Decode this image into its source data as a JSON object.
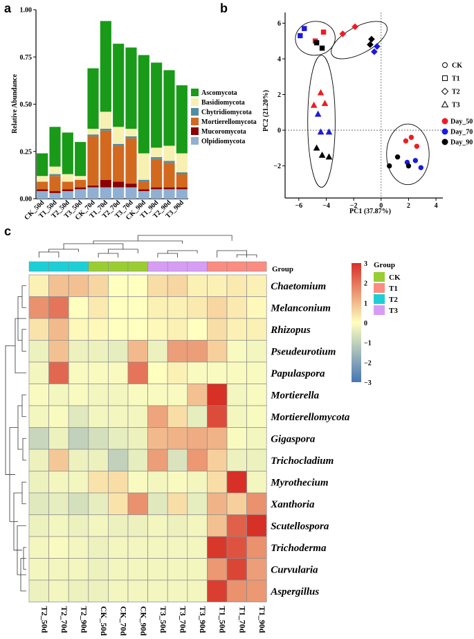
{
  "panels": {
    "a": "a",
    "b": "b",
    "c": "c"
  },
  "chart_data": [
    {
      "type": "bar",
      "stacked": true,
      "ylabel": "Relative Abundance",
      "xlabel": "",
      "ylim": [
        0,
        1.0
      ],
      "yticks": [
        "0.00",
        "0.25",
        "0.50",
        "0.75",
        "1.00"
      ],
      "categories": [
        "CK_50d",
        "T1_50d",
        "T2_50d",
        "T3_50d",
        "CK_70d",
        "T1_70d",
        "T2_70d",
        "T3_70d",
        "CK_90d",
        "T1_90d",
        "T2_90d",
        "T3_90d"
      ],
      "series": [
        {
          "name": "Olpidiomycota",
          "color": "#8fb0d2",
          "values": [
            0.04,
            0.03,
            0.04,
            0.05,
            0.06,
            0.06,
            0.06,
            0.06,
            0.04,
            0.05,
            0.05,
            0.05
          ]
        },
        {
          "name": "Mucoromycota",
          "color": "#8b0000",
          "values": [
            0.01,
            0.01,
            0.01,
            0.01,
            0.01,
            0.04,
            0.03,
            0.02,
            0.01,
            0.01,
            0.01,
            0.01
          ]
        },
        {
          "name": "Mortierellomycota",
          "color": "#d2691e",
          "values": [
            0.04,
            0.08,
            0.04,
            0.04,
            0.26,
            0.26,
            0.19,
            0.24,
            0.04,
            0.15,
            0.13,
            0.07
          ]
        },
        {
          "name": "Chytridiomycota",
          "color": "#4f8fa3",
          "values": [
            0.0,
            0.01,
            0.0,
            0.0,
            0.01,
            0.01,
            0.01,
            0.01,
            0.01,
            0.01,
            0.01,
            0.01
          ]
        },
        {
          "name": "Basidiomycota",
          "color": "#f8f0b0",
          "values": [
            0.03,
            0.04,
            0.04,
            0.02,
            0.03,
            0.09,
            0.09,
            0.04,
            0.14,
            0.05,
            0.08,
            0.1
          ]
        },
        {
          "name": "Ascomycota",
          "color": "#199a19",
          "values": [
            0.12,
            0.21,
            0.22,
            0.18,
            0.32,
            0.48,
            0.44,
            0.43,
            0.52,
            0.45,
            0.4,
            0.36
          ]
        }
      ],
      "legend_order": [
        "Ascomycota",
        "Basidiomycota",
        "Chytridiomycota",
        "Mortierellomycota",
        "Mucoromycota",
        "Olpidiomycota"
      ],
      "legend": "right"
    },
    {
      "type": "scatter",
      "xlabel": "PC1 (37.87%)",
      "ylabel": "PC2 (21.20%)",
      "xlim": [
        -7,
        4.5
      ],
      "ylim": [
        -3.8,
        6.6
      ],
      "xticks": [
        "−6",
        "−4",
        "−2",
        "0",
        "2",
        "4"
      ],
      "yticks": [
        "−2",
        "0",
        "2",
        "4",
        "6"
      ],
      "legend_shape": [
        "CK",
        "T1",
        "T2",
        "T3"
      ],
      "legend_color": [
        "Day_50",
        "Day_70",
        "Day_90"
      ],
      "colors": {
        "Day_50": "#ee1c25",
        "Day_70": "#1b1bdd",
        "Day_90": "#000000"
      },
      "points": [
        {
          "x": -5.6,
          "y": 5.7,
          "group": "T1",
          "day": "Day_70"
        },
        {
          "x": -4.2,
          "y": 5.5,
          "group": "T1",
          "day": "Day_50"
        },
        {
          "x": -4.3,
          "y": 4.6,
          "group": "T1",
          "day": "Day_90"
        },
        {
          "x": -4.8,
          "y": 5.0,
          "group": "T1",
          "day": "Day_50"
        },
        {
          "x": -4.7,
          "y": 4.9,
          "group": "T1",
          "day": "Day_90"
        },
        {
          "x": -5.9,
          "y": 5.3,
          "group": "T1",
          "day": "Day_70"
        },
        {
          "x": -2.8,
          "y": 5.4,
          "group": "T2",
          "day": "Day_50"
        },
        {
          "x": -1.9,
          "y": 5.8,
          "group": "T2",
          "day": "Day_50"
        },
        {
          "x": -0.7,
          "y": 5.1,
          "group": "T2",
          "day": "Day_90"
        },
        {
          "x": -0.8,
          "y": 4.8,
          "group": "T2",
          "day": "Day_90"
        },
        {
          "x": -0.3,
          "y": 4.7,
          "group": "T2",
          "day": "Day_70"
        },
        {
          "x": -0.5,
          "y": 4.4,
          "group": "T2",
          "day": "Day_70"
        },
        {
          "x": -4.4,
          "y": 2.1,
          "group": "T3",
          "day": "Day_50"
        },
        {
          "x": -4.1,
          "y": 1.5,
          "group": "T3",
          "day": "Day_50"
        },
        {
          "x": -4.9,
          "y": 1.4,
          "group": "T3",
          "day": "Day_50"
        },
        {
          "x": -4.6,
          "y": 0.9,
          "group": "T3",
          "day": "Day_70"
        },
        {
          "x": -4.4,
          "y": -0.1,
          "group": "T3",
          "day": "Day_70"
        },
        {
          "x": -3.8,
          "y": -0.1,
          "group": "T3",
          "day": "Day_70"
        },
        {
          "x": -4.7,
          "y": -1.0,
          "group": "T3",
          "day": "Day_90"
        },
        {
          "x": -4.3,
          "y": -1.4,
          "group": "T3",
          "day": "Day_90"
        },
        {
          "x": -3.8,
          "y": -1.5,
          "group": "T3",
          "day": "Day_90"
        },
        {
          "x": 2.2,
          "y": -0.4,
          "group": "CK",
          "day": "Day_50"
        },
        {
          "x": 1.8,
          "y": -0.6,
          "group": "CK",
          "day": "Day_50"
        },
        {
          "x": 2.6,
          "y": -0.9,
          "group": "CK",
          "day": "Day_50"
        },
        {
          "x": 1.9,
          "y": -1.8,
          "group": "CK",
          "day": "Day_70"
        },
        {
          "x": 2.5,
          "y": -1.7,
          "group": "CK",
          "day": "Day_70"
        },
        {
          "x": 2.9,
          "y": -2.1,
          "group": "CK",
          "day": "Day_70"
        },
        {
          "x": 0.6,
          "y": -2.0,
          "group": "CK",
          "day": "Day_90"
        },
        {
          "x": 1.2,
          "y": -1.5,
          "group": "CK",
          "day": "Day_90"
        },
        {
          "x": 2.0,
          "y": -2.0,
          "group": "CK",
          "day": "Day_90"
        }
      ],
      "ellipses": [
        {
          "group": "T1",
          "cx": -4.8,
          "cy": 5.15,
          "rx": 1.45,
          "ry": 0.95,
          "angle": -5
        },
        {
          "group": "T2",
          "cx": -1.6,
          "cy": 5.05,
          "rx": 2.25,
          "ry": 0.75,
          "angle": -28
        },
        {
          "group": "T3",
          "cx": -4.35,
          "cy": 0.5,
          "rx": 1.0,
          "ry": 3.7,
          "angle": 0
        },
        {
          "group": "CK",
          "cx": 1.95,
          "cy": -1.35,
          "rx": 1.55,
          "ry": 1.7,
          "angle": 0
        }
      ]
    },
    {
      "type": "heatmap",
      "columns": [
        "T2_50d",
        "T2_70d",
        "T2_90d",
        "CK_50d",
        "CK_70d",
        "CK_90d",
        "T3_50d",
        "T3_70d",
        "T3_90d",
        "T1_50d",
        "T1_70d",
        "T1_90d"
      ],
      "column_groups": [
        "T2",
        "T2",
        "T2",
        "CK",
        "CK",
        "CK",
        "T3",
        "T3",
        "T3",
        "T1",
        "T1",
        "T1"
      ],
      "rows": [
        "Chaetomium",
        "Melanconium",
        "Rhizopus",
        "Pseudeurotium",
        "Papulaspora",
        "Mortierella",
        "Mortierellomycota",
        "Gigaspora",
        "Trichocladium",
        "Myrothecium",
        "Xanthoria",
        "Scutellospora",
        "Trichoderma",
        "Curvularia",
        "Aspergillus"
      ],
      "values": [
        [
          0.2,
          0.9,
          0.9,
          0.6,
          0.0,
          0.0,
          0.5,
          0.6,
          0.2,
          0.2,
          0.3,
          0.2
        ],
        [
          1.6,
          2.0,
          0.0,
          0.3,
          0.0,
          0.0,
          0.2,
          0.2,
          0.3,
          0.6,
          0.3,
          0.1
        ],
        [
          0.4,
          1.0,
          0.1,
          0.1,
          0.0,
          0.0,
          0.1,
          0.2,
          0.0,
          0.5,
          0.2,
          0.2
        ],
        [
          -0.3,
          0.9,
          -0.3,
          -0.3,
          -0.4,
          1.0,
          -0.3,
          1.4,
          1.4,
          0.7,
          -0.1,
          -0.2
        ],
        [
          -0.2,
          2.2,
          -0.1,
          -0.1,
          -0.1,
          2.0,
          0.0,
          0.2,
          -0.1,
          -0.1,
          -0.1,
          -0.1
        ],
        [
          -0.1,
          -0.2,
          -0.1,
          -0.2,
          -0.2,
          -0.1,
          -0.1,
          -0.1,
          0.9,
          3.0,
          -0.2,
          -0.1
        ],
        [
          -0.2,
          -0.1,
          -0.5,
          -0.2,
          -0.2,
          -0.2,
          1.3,
          0.5,
          -0.4,
          2.6,
          -0.2,
          -0.1
        ],
        [
          -0.9,
          -0.3,
          -1.0,
          -0.7,
          -0.4,
          -0.3,
          1.0,
          1.1,
          1.2,
          1.1,
          -0.1,
          -0.2
        ],
        [
          -0.3,
          0.8,
          -0.3,
          -0.3,
          -1.0,
          -0.4,
          1.4,
          -0.6,
          1.5,
          0.7,
          -0.3,
          -0.3
        ],
        [
          -0.3,
          -0.2,
          -0.2,
          0.4,
          0.5,
          -0.1,
          -0.2,
          -0.1,
          -0.2,
          0.5,
          3.0,
          -0.2
        ],
        [
          -0.5,
          -0.4,
          -0.7,
          -0.4,
          0.4,
          1.6,
          -0.5,
          0.5,
          -0.4,
          1.1,
          0.7,
          1.6
        ],
        [
          -0.3,
          -0.2,
          -0.3,
          -0.2,
          -0.3,
          -0.3,
          -0.2,
          -0.3,
          -0.2,
          0.9,
          2.3,
          3.0
        ],
        [
          -0.2,
          -0.1,
          -0.2,
          -0.3,
          -0.2,
          -0.2,
          -0.2,
          -0.2,
          -0.2,
          2.9,
          2.5,
          1.6
        ],
        [
          -0.2,
          -0.2,
          -0.2,
          -0.3,
          -0.2,
          -0.2,
          -0.2,
          -0.2,
          -0.2,
          1.5,
          2.7,
          1.4
        ],
        [
          -0.3,
          -0.2,
          -0.3,
          -0.3,
          -0.2,
          -0.2,
          -0.2,
          -0.2,
          -0.2,
          2.8,
          1.6,
          1.5
        ]
      ],
      "color_scale": {
        "min": -3,
        "max": 3,
        "low": "#4575b4",
        "mid": "#ffffbf",
        "high": "#d73027",
        "ticks": [
          "3",
          "2",
          "1",
          "0",
          "−1",
          "−2",
          "−3"
        ]
      },
      "group_legend_title": "Group",
      "group_legend": [
        {
          "name": "CK",
          "color": "#9acd32"
        },
        {
          "name": "T1",
          "color": "#fa8c82"
        },
        {
          "name": "T2",
          "color": "#1ccfd6"
        },
        {
          "name": "T3",
          "color": "#d79df5"
        }
      ],
      "group_bar_label": "Group"
    }
  ]
}
